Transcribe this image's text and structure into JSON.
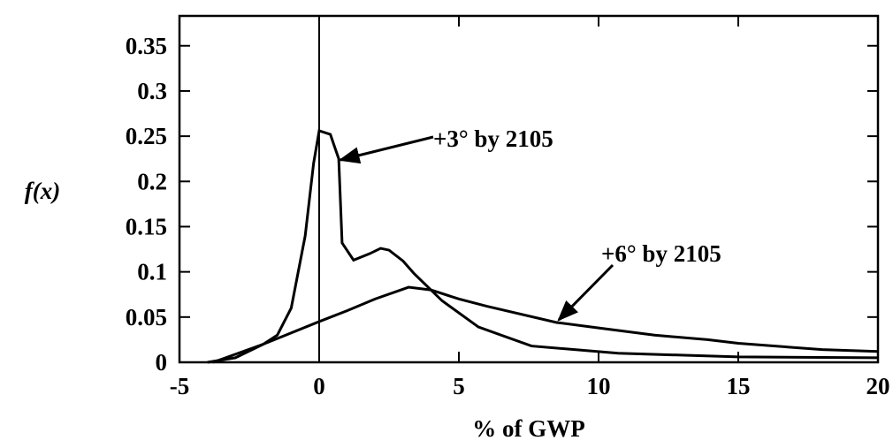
{
  "chart_data": {
    "type": "line",
    "xlabel": "% of GWP",
    "ylabel": "f(x)",
    "xlim": [
      -5,
      20
    ],
    "ylim": [
      0,
      0.383
    ],
    "xticks": [
      -5,
      0,
      5,
      10,
      15,
      20
    ],
    "yticks": [
      0,
      0.05,
      0.1,
      0.15,
      0.2,
      0.25,
      0.3,
      0.35
    ],
    "vline": 0,
    "series": [
      {
        "name": "+3° by 2105",
        "color": "#000",
        "x": [
          -4,
          -3,
          -2,
          -1.5,
          -1,
          -0.5,
          -0.2,
          0,
          0.4,
          0.7,
          0.82,
          1.23,
          1.8,
          2.2,
          2.5,
          3,
          3.4,
          4.4,
          5.7,
          7.6,
          10.7,
          15,
          20
        ],
        "values": [
          0,
          0.005,
          0.02,
          0.03,
          0.06,
          0.14,
          0.22,
          0.256,
          0.252,
          0.225,
          0.132,
          0.113,
          0.12,
          0.126,
          0.124,
          0.112,
          0.098,
          0.068,
          0.039,
          0.018,
          0.01,
          0.006,
          0.005
        ]
      },
      {
        "name": "+6° by 2105",
        "color": "#000",
        "x": [
          -3.8,
          -2,
          0,
          1,
          2,
          3.2,
          4,
          5,
          6,
          8.5,
          10,
          12,
          13.9,
          15,
          18,
          20
        ],
        "values": [
          0,
          0.02,
          0.045,
          0.057,
          0.07,
          0.083,
          0.08,
          0.07,
          0.062,
          0.044,
          0.038,
          0.03,
          0.025,
          0.021,
          0.014,
          0.012
        ]
      }
    ]
  }
}
